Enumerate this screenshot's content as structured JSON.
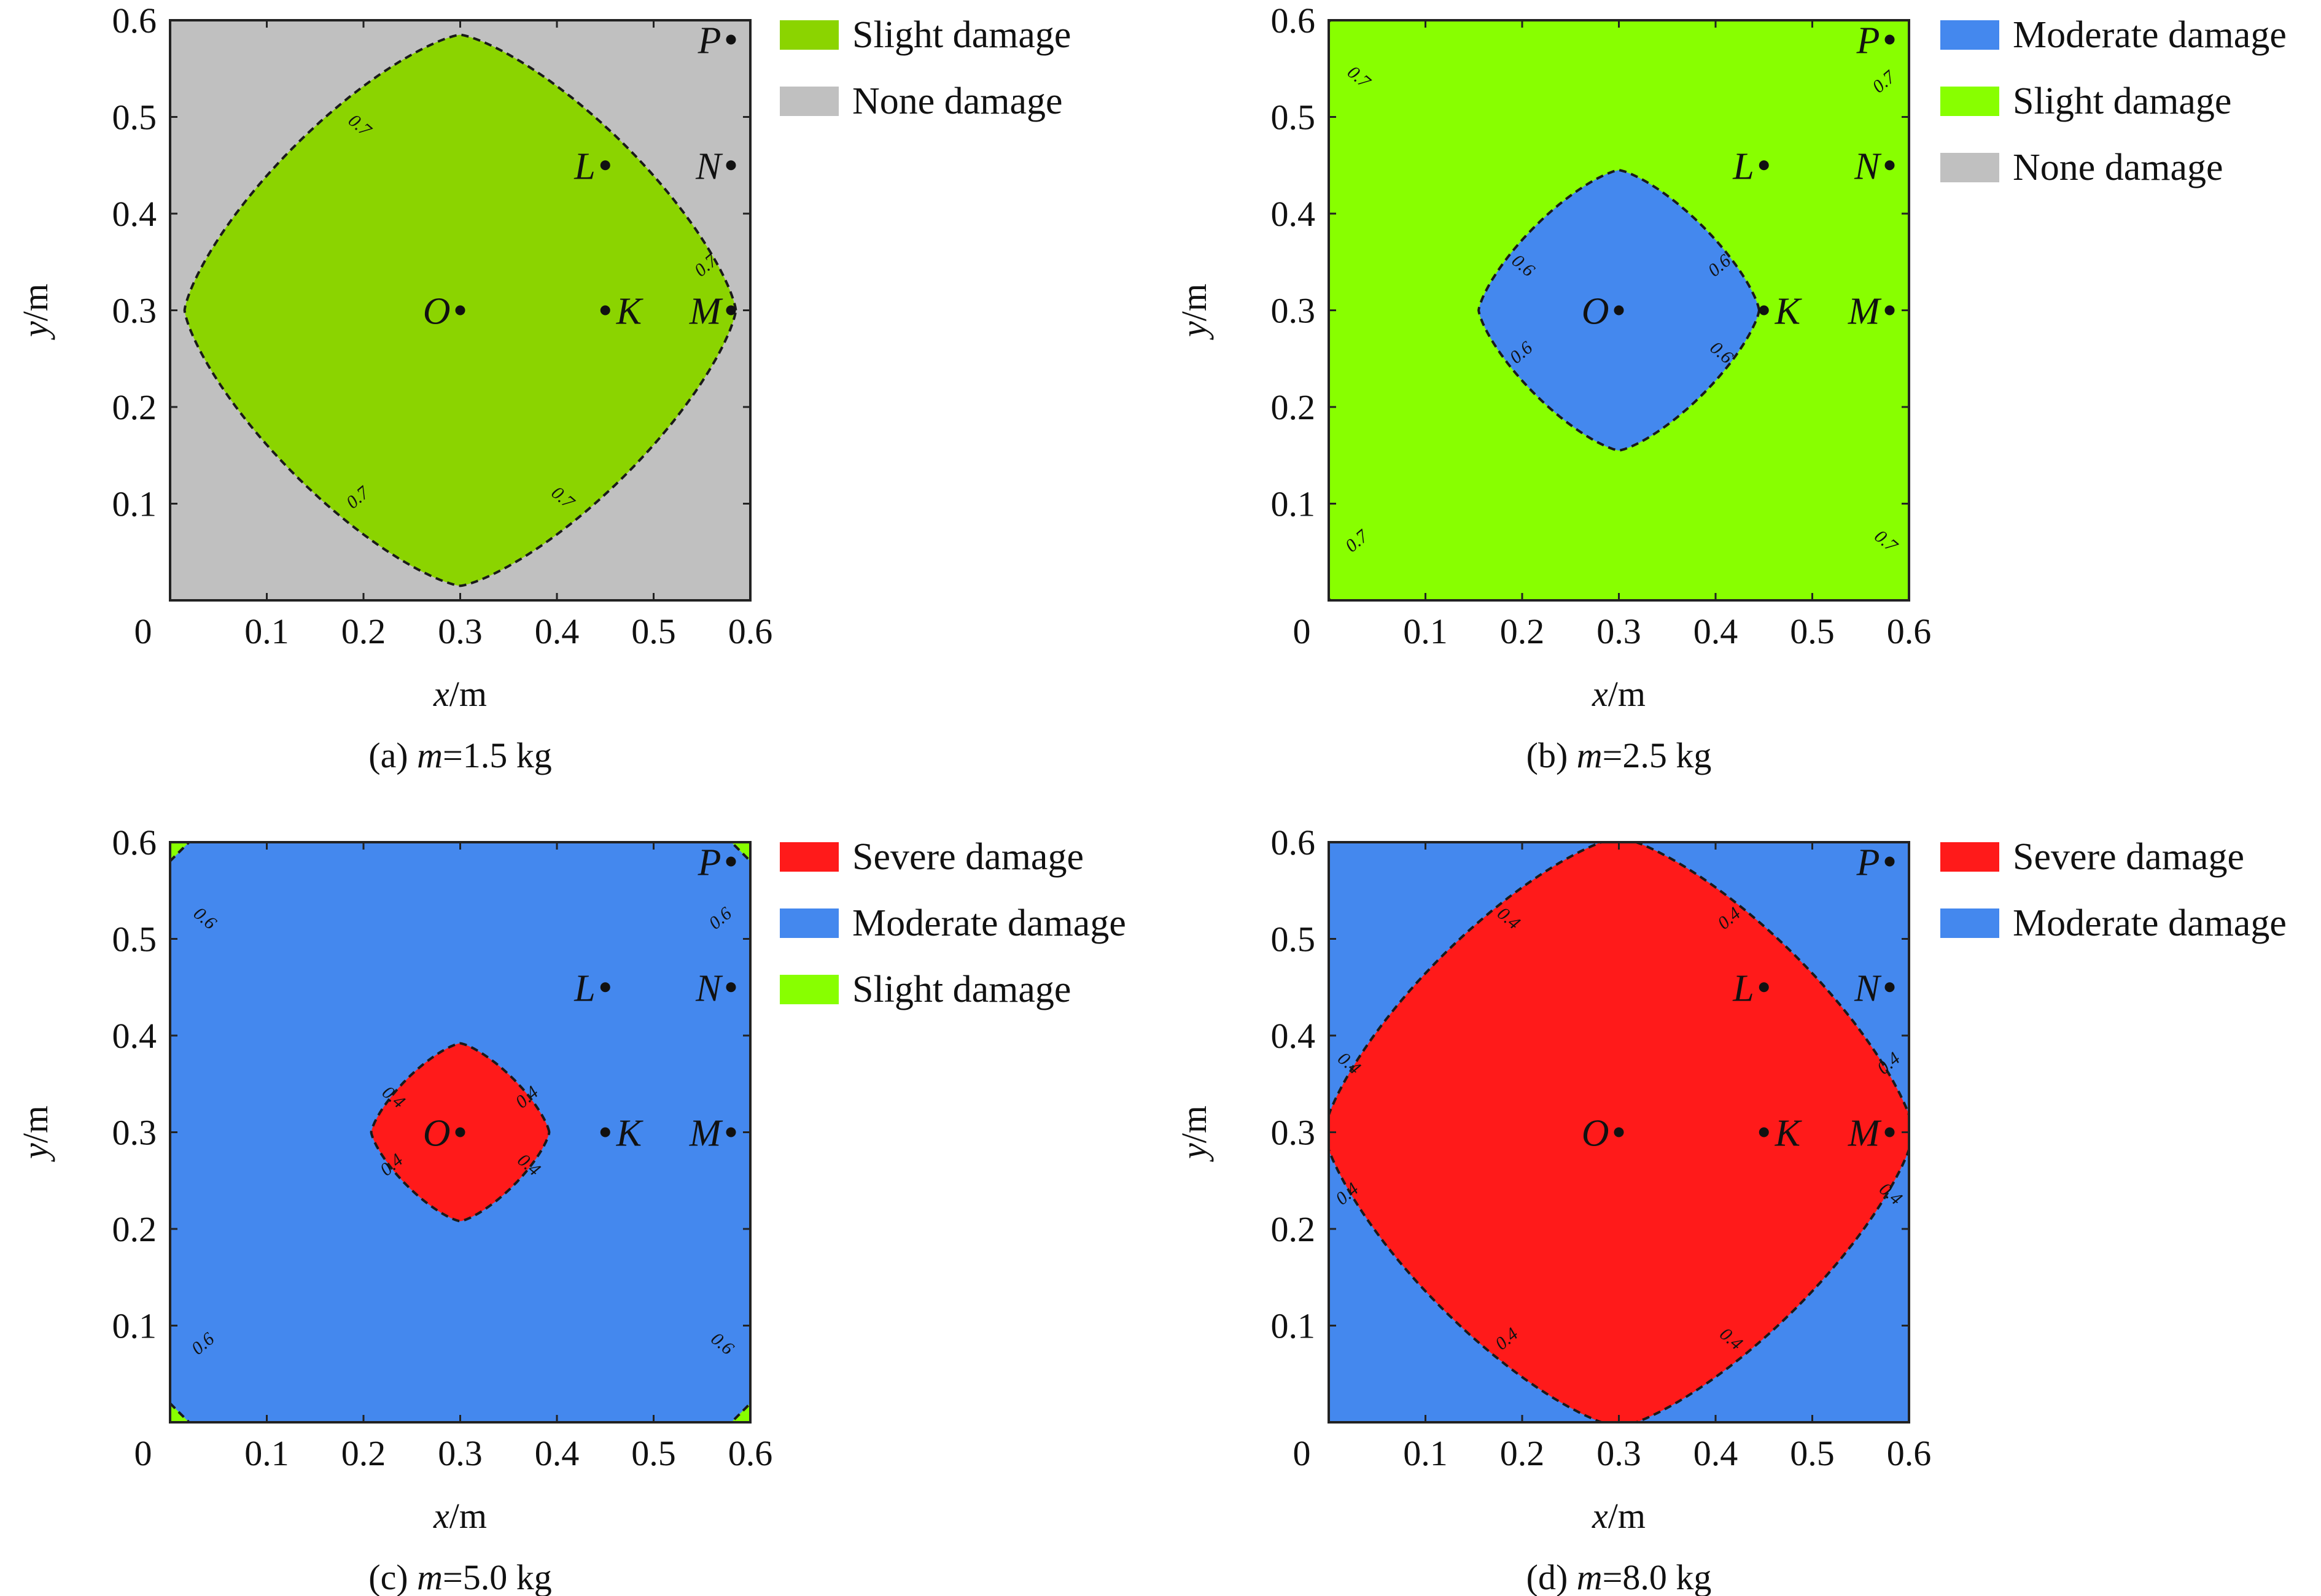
{
  "colors": {
    "severe": "#ff1a1a",
    "moderate": "#4488ee",
    "slight": "#88ff00",
    "slight_a": "#8bd400",
    "none": "#c0c0c0",
    "frame": "#222222"
  },
  "chart_data": [
    {
      "type": "contour",
      "caption": {
        "prefix": "(a) ",
        "var": "m",
        "rest": "=1.5 kg"
      },
      "xlabel": {
        "var": "x",
        "unit": "/m"
      },
      "ylabel": {
        "var": "y",
        "unit": "/m"
      },
      "xlim": [
        0,
        0.6
      ],
      "ylim": [
        0,
        0.6
      ],
      "xticks": [
        "0",
        "0.1",
        "0.2",
        "0.3",
        "0.4",
        "0.5",
        "0.6"
      ],
      "yticks": [
        "0.1",
        "0.2",
        "0.3",
        "0.4",
        "0.5",
        "0.6"
      ],
      "background": "none",
      "regions": [
        {
          "class": "slight_a",
          "shape": "diamond",
          "center": [
            0.3,
            0.3
          ],
          "half_width": 0.285,
          "contour_label": "0.7"
        }
      ],
      "legend": [
        {
          "label": "Slight damage",
          "color": "slight_a"
        },
        {
          "label": "None damage",
          "color": "none"
        }
      ],
      "contour_labels": [
        {
          "text": "0.7",
          "at": [
            0.195,
            0.49
          ],
          "angle": -40
        },
        {
          "text": "0.7",
          "at": [
            0.555,
            0.345
          ],
          "angle": 40
        },
        {
          "text": "0.7",
          "at": [
            0.195,
            0.105
          ],
          "angle": 40
        },
        {
          "text": "0.7",
          "at": [
            0.405,
            0.105
          ],
          "angle": -40
        }
      ],
      "points": [
        {
          "name": "O",
          "x": 0.3,
          "y": 0.3
        },
        {
          "name": "K",
          "x": 0.45,
          "y": 0.3
        },
        {
          "name": "M",
          "x": 0.58,
          "y": 0.3
        },
        {
          "name": "L",
          "x": 0.45,
          "y": 0.45
        },
        {
          "name": "N",
          "x": 0.58,
          "y": 0.45
        },
        {
          "name": "P",
          "x": 0.58,
          "y": 0.58
        }
      ]
    },
    {
      "type": "contour",
      "caption": {
        "prefix": "(b) ",
        "var": "m",
        "rest": "=2.5 kg"
      },
      "xlabel": {
        "var": "x",
        "unit": "/m"
      },
      "ylabel": {
        "var": "y",
        "unit": "/m"
      },
      "xlim": [
        0,
        0.6
      ],
      "ylim": [
        0,
        0.6
      ],
      "xticks": [
        "0",
        "0.1",
        "0.2",
        "0.3",
        "0.4",
        "0.5",
        "0.6"
      ],
      "yticks": [
        "0.1",
        "0.2",
        "0.3",
        "0.4",
        "0.5",
        "0.6"
      ],
      "background": "none",
      "regions": [
        {
          "class": "slight",
          "shape": "diamond",
          "center": [
            0.3,
            0.3
          ],
          "half_width": 0.5,
          "contour_label": "0.7"
        },
        {
          "class": "moderate",
          "shape": "diamond",
          "center": [
            0.3,
            0.3
          ],
          "half_width": 0.145,
          "contour_label": "0.6"
        }
      ],
      "legend": [
        {
          "label": "Moderate damage",
          "color": "moderate"
        },
        {
          "label": "Slight damage",
          "color": "slight"
        },
        {
          "label": "None damage",
          "color": "none"
        }
      ],
      "contour_labels": [
        {
          "text": "0.7",
          "at": [
            0.03,
            0.54
          ],
          "angle": -40
        },
        {
          "text": "0.7",
          "at": [
            0.575,
            0.535
          ],
          "angle": 40
        },
        {
          "text": "0.7",
          "at": [
            0.03,
            0.06
          ],
          "angle": 40
        },
        {
          "text": "0.7",
          "at": [
            0.575,
            0.06
          ],
          "angle": -40
        },
        {
          "text": "0.6",
          "at": [
            0.2,
            0.345
          ],
          "angle": -40
        },
        {
          "text": "0.6",
          "at": [
            0.405,
            0.345
          ],
          "angle": 40
        },
        {
          "text": "0.6",
          "at": [
            0.2,
            0.255
          ],
          "angle": 40
        },
        {
          "text": "0.6",
          "at": [
            0.405,
            0.255
          ],
          "angle": -40
        }
      ],
      "points": [
        {
          "name": "O",
          "x": 0.3,
          "y": 0.3
        },
        {
          "name": "K",
          "x": 0.45,
          "y": 0.3
        },
        {
          "name": "M",
          "x": 0.58,
          "y": 0.3
        },
        {
          "name": "L",
          "x": 0.45,
          "y": 0.45
        },
        {
          "name": "N",
          "x": 0.58,
          "y": 0.45
        },
        {
          "name": "P",
          "x": 0.58,
          "y": 0.58
        }
      ]
    },
    {
      "type": "contour",
      "caption": {
        "prefix": "(c) ",
        "var": "m",
        "rest": "=5.0 kg"
      },
      "xlabel": {
        "var": "x",
        "unit": "/m"
      },
      "ylabel": {
        "var": "y",
        "unit": "/m"
      },
      "xlim": [
        0,
        0.6
      ],
      "ylim": [
        0,
        0.6
      ],
      "xticks": [
        "0",
        "0.1",
        "0.2",
        "0.3",
        "0.4",
        "0.5",
        "0.6"
      ],
      "yticks": [
        "0.1",
        "0.2",
        "0.3",
        "0.4",
        "0.5",
        "0.6"
      ],
      "background": "slight",
      "regions": [
        {
          "class": "moderate",
          "shape": "diamond",
          "center": [
            0.3,
            0.3
          ],
          "half_width": 0.485,
          "contour_label": "0.6"
        },
        {
          "class": "severe",
          "shape": "diamond",
          "center": [
            0.3,
            0.3
          ],
          "half_width": 0.092,
          "contour_label": "0.4"
        }
      ],
      "legend": [
        {
          "label": "Severe damage",
          "color": "severe"
        },
        {
          "label": "Moderate damage",
          "color": "moderate"
        },
        {
          "label": "Slight damage",
          "color": "slight"
        }
      ],
      "contour_labels": [
        {
          "text": "0.6",
          "at": [
            0.035,
            0.52
          ],
          "angle": -40
        },
        {
          "text": "0.6",
          "at": [
            0.57,
            0.52
          ],
          "angle": 40
        },
        {
          "text": "0.6",
          "at": [
            0.035,
            0.08
          ],
          "angle": 40
        },
        {
          "text": "0.6",
          "at": [
            0.57,
            0.08
          ],
          "angle": -40
        },
        {
          "text": "0.4",
          "at": [
            0.23,
            0.335
          ],
          "angle": -40
        },
        {
          "text": "0.4",
          "at": [
            0.37,
            0.335
          ],
          "angle": 40
        },
        {
          "text": "0.4",
          "at": [
            0.23,
            0.265
          ],
          "angle": 40
        },
        {
          "text": "0.4",
          "at": [
            0.37,
            0.265
          ],
          "angle": -40
        }
      ],
      "points": [
        {
          "name": "O",
          "x": 0.3,
          "y": 0.3
        },
        {
          "name": "K",
          "x": 0.45,
          "y": 0.3
        },
        {
          "name": "M",
          "x": 0.58,
          "y": 0.3
        },
        {
          "name": "L",
          "x": 0.45,
          "y": 0.45
        },
        {
          "name": "N",
          "x": 0.58,
          "y": 0.45
        },
        {
          "name": "P",
          "x": 0.58,
          "y": 0.58
        }
      ]
    },
    {
      "type": "contour",
      "caption": {
        "prefix": "(d) ",
        "var": "m",
        "rest": "=8.0 kg"
      },
      "xlabel": {
        "var": "x",
        "unit": "/m"
      },
      "ylabel": {
        "var": "y",
        "unit": "/m"
      },
      "xlim": [
        0,
        0.6
      ],
      "ylim": [
        0,
        0.6
      ],
      "xticks": [
        "0",
        "0.1",
        "0.2",
        "0.3",
        "0.4",
        "0.5",
        "0.6"
      ],
      "yticks": [
        "0.1",
        "0.2",
        "0.3",
        "0.4",
        "0.5",
        "0.6"
      ],
      "background": "moderate",
      "regions": [
        {
          "class": "severe",
          "shape": "diamond",
          "center": [
            0.3,
            0.3
          ],
          "half_width": 0.305,
          "contour_label": "0.4"
        }
      ],
      "legend": [
        {
          "label": "Severe damage",
          "color": "severe"
        },
        {
          "label": "Moderate damage",
          "color": "moderate"
        }
      ],
      "contour_labels": [
        {
          "text": "0.4",
          "at": [
            0.185,
            0.52
          ],
          "angle": -40
        },
        {
          "text": "0.4",
          "at": [
            0.415,
            0.52
          ],
          "angle": 40
        },
        {
          "text": "0.4",
          "at": [
            0.02,
            0.37
          ],
          "angle": -40
        },
        {
          "text": "0.4",
          "at": [
            0.58,
            0.37
          ],
          "angle": 40
        },
        {
          "text": "0.4",
          "at": [
            0.02,
            0.235
          ],
          "angle": 40
        },
        {
          "text": "0.4",
          "at": [
            0.58,
            0.235
          ],
          "angle": -40
        },
        {
          "text": "0.4",
          "at": [
            0.185,
            0.085
          ],
          "angle": 40
        },
        {
          "text": "0.4",
          "at": [
            0.415,
            0.085
          ],
          "angle": -40
        }
      ],
      "points": [
        {
          "name": "O",
          "x": 0.3,
          "y": 0.3
        },
        {
          "name": "K",
          "x": 0.45,
          "y": 0.3
        },
        {
          "name": "M",
          "x": 0.58,
          "y": 0.3
        },
        {
          "name": "L",
          "x": 0.45,
          "y": 0.45
        },
        {
          "name": "N",
          "x": 0.58,
          "y": 0.45
        },
        {
          "name": "P",
          "x": 0.58,
          "y": 0.58
        }
      ]
    }
  ]
}
